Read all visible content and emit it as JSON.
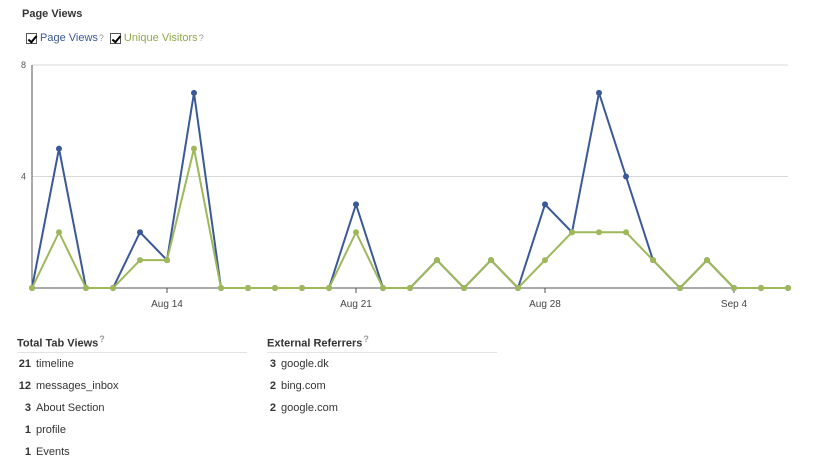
{
  "header": {
    "title": "Page Views"
  },
  "legend": {
    "page_views_label": "Page Views",
    "unique_visitors_label": "Unique Visitors",
    "help_mark": "?"
  },
  "colors": {
    "page_views": "#3b5998",
    "unique_visitors": "#9eb85a",
    "grid": "#d9d9d9",
    "axis": "#555555",
    "legend_unique_text": "#8fa94a"
  },
  "chart_data": {
    "type": "line",
    "title": "",
    "xlabel": "",
    "ylabel": "",
    "ylim": [
      0,
      8
    ],
    "y_ticks": [
      4,
      8
    ],
    "x_ticks": [
      "Aug 14",
      "Aug 21",
      "Aug 28",
      "Sep 4"
    ],
    "x_tick_indices": [
      5,
      12,
      19,
      26
    ],
    "grid": true,
    "legend_position": "top-left",
    "series": [
      {
        "name": "Page Views",
        "values": [
          0,
          5,
          0,
          0,
          2,
          1,
          7,
          0,
          0,
          0,
          0,
          0,
          3,
          0,
          0,
          1,
          0,
          1,
          0,
          3,
          2,
          7,
          4,
          1,
          0,
          1,
          0,
          0,
          0
        ]
      },
      {
        "name": "Unique Visitors",
        "values": [
          0,
          2,
          0,
          0,
          1,
          1,
          5,
          0,
          0,
          0,
          0,
          0,
          2,
          0,
          0,
          1,
          0,
          1,
          0,
          1,
          2,
          2,
          2,
          1,
          0,
          1,
          0,
          0,
          0
        ]
      }
    ]
  },
  "tab_views": {
    "title": "Total Tab Views",
    "rows": [
      {
        "count": "21",
        "label": "timeline"
      },
      {
        "count": "12",
        "label": "messages_inbox"
      },
      {
        "count": "3",
        "label": "About Section"
      },
      {
        "count": "1",
        "label": "profile"
      },
      {
        "count": "1",
        "label": "Events"
      }
    ]
  },
  "referrers": {
    "title": "External Referrers",
    "rows": [
      {
        "count": "3",
        "label": "google.dk"
      },
      {
        "count": "2",
        "label": "bing.com"
      },
      {
        "count": "2",
        "label": "google.com"
      }
    ]
  }
}
